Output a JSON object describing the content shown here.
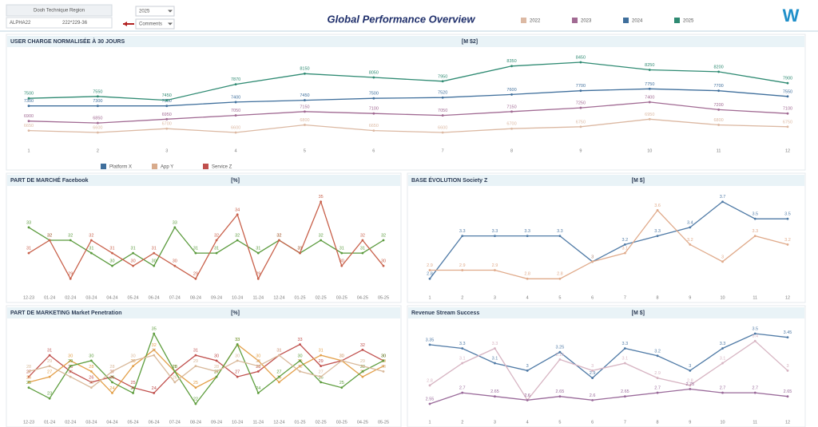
{
  "header": {
    "filter_label": "Dooh Technique Region",
    "filter_code": "ALPHA22",
    "filter_value": "222*229-36",
    "year_select": "2025",
    "comment_select": "Comments",
    "title": "Global Performance Overview",
    "logo": "W"
  },
  "footer_legend": [
    {
      "name": "Platform X",
      "color": "#3f6f9c"
    },
    {
      "name": "App Y",
      "color": "#d8ab8c"
    },
    {
      "name": "Service Z",
      "color": "#c0504d"
    }
  ],
  "chart_data": [
    {
      "type": "line",
      "title": "USER CHARGE NORMALISÉE À 30 JOURS",
      "unit": "[M $2]",
      "categories": [
        "1",
        "2",
        "3",
        "4",
        "5",
        "6",
        "7",
        "8",
        "9",
        "10",
        "11",
        "12"
      ],
      "series": [
        {
          "name": "2022",
          "color": "#dcb9a3",
          "values": [
            6650,
            6600,
            6700,
            6600,
            6800,
            6650,
            6600,
            6700,
            6750,
            6950,
            6800,
            6750
          ]
        },
        {
          "name": "2023",
          "color": "#a16a93",
          "values": [
            6900,
            6850,
            6950,
            7050,
            7150,
            7100,
            7050,
            7150,
            7250,
            7400,
            7200,
            7100
          ]
        },
        {
          "name": "2024",
          "color": "#3f6f9c",
          "values": [
            7300,
            7300,
            7300,
            7400,
            7450,
            7500,
            7520,
            7600,
            7700,
            7750,
            7700,
            7550
          ]
        },
        {
          "name": "2025",
          "color": "#2e8a72",
          "values": [
            7500,
            7550,
            7450,
            7870,
            8150,
            8050,
            7950,
            8350,
            8450,
            8250,
            8200,
            7900
          ]
        }
      ]
    },
    {
      "type": "line",
      "title": "PART DE MARCHÉ Facebook",
      "unit": "[%]",
      "categories": [
        "12-23",
        "01-24",
        "02-24",
        "03-24",
        "04-24",
        "05-24",
        "06-24",
        "07-24",
        "08-24",
        "09-24",
        "10-24",
        "11-24",
        "12-24",
        "01-25",
        "02-25",
        "03-25",
        "04-25",
        "05-25"
      ],
      "series": [
        {
          "color": "#5a9a3c",
          "values": [
            33,
            32,
            32,
            31,
            30,
            31,
            30,
            33,
            31,
            31,
            32,
            31,
            32,
            31,
            32,
            31,
            31,
            32
          ]
        },
        {
          "color": "#c8604a",
          "values": [
            31,
            32,
            29,
            32,
            31,
            30,
            31,
            30,
            29,
            32,
            34,
            29,
            32,
            31,
            35,
            30,
            32,
            30
          ]
        }
      ]
    },
    {
      "type": "line",
      "title": "BASE ÉVOLUTION Society Z",
      "unit": "[M $]",
      "categories": [
        "1",
        "2",
        "3",
        "4",
        "5",
        "6",
        "7",
        "8",
        "9",
        "10",
        "11",
        "12"
      ],
      "series": [
        {
          "color": "#4f7aa6",
          "values": [
            2.8,
            3.3,
            3.3,
            3.3,
            3.3,
            3.0,
            3.2,
            3.3,
            3.4,
            3.7,
            3.5,
            3.5
          ]
        },
        {
          "color": "#e0aa8a",
          "values": [
            2.9,
            2.9,
            2.9,
            2.8,
            2.8,
            3.0,
            3.1,
            3.6,
            3.2,
            3.0,
            3.3,
            3.2
          ]
        }
      ]
    },
    {
      "type": "line",
      "title": "PART DE MARKETING Market Penetration",
      "unit": "[%]",
      "categories": [
        "12-23",
        "01-24",
        "02-24",
        "03-24",
        "04-24",
        "05-24",
        "06-24",
        "07-24",
        "08-24",
        "09-24",
        "10-24",
        "11-24",
        "12-24",
        "01-25",
        "02-25",
        "03-25",
        "04-25",
        "05-25"
      ],
      "series": [
        {
          "color": "#c0504d",
          "values": [
            27,
            31,
            28,
            26,
            27,
            25,
            24,
            28,
            31,
            30,
            27,
            28,
            31,
            33,
            29,
            30,
            32,
            30
          ]
        },
        {
          "color": "#e3a04a",
          "values": [
            26,
            27,
            30,
            28,
            24,
            29,
            32,
            28,
            25,
            27,
            33,
            30,
            26,
            29,
            31,
            30,
            27,
            29
          ]
        },
        {
          "color": "#5f9e3f",
          "values": [
            25,
            23,
            29,
            30,
            26,
            24,
            35,
            28,
            22,
            27,
            33,
            24,
            27,
            30,
            26,
            25,
            28,
            30
          ]
        },
        {
          "color": "#d9b99a",
          "values": [
            28,
            29,
            27,
            25,
            28,
            30,
            31,
            26,
            29,
            28,
            30,
            29,
            31,
            28,
            27,
            30,
            29,
            28
          ]
        }
      ]
    },
    {
      "type": "line",
      "title": "Revenue Stream Success",
      "unit": "[M $]",
      "categories": [
        "1",
        "2",
        "3",
        "4",
        "5",
        "6",
        "7",
        "8",
        "9",
        "10",
        "11",
        "12"
      ],
      "series": [
        {
          "color": "#4f7aa6",
          "values": [
            3.35,
            3.3,
            3.1,
            3.0,
            3.25,
            2.9,
            3.3,
            3.2,
            3.0,
            3.3,
            3.5,
            3.45
          ]
        },
        {
          "color": "#d7b4c2",
          "values": [
            2.8,
            3.1,
            3.3,
            2.6,
            3.15,
            3.0,
            3.1,
            2.9,
            2.8,
            3.1,
            3.4,
            3.0
          ]
        },
        {
          "color": "#9a6a9a",
          "values": [
            2.55,
            2.7,
            2.65,
            2.6,
            2.65,
            2.6,
            2.65,
            2.7,
            2.75,
            2.7,
            2.7,
            2.65
          ]
        }
      ]
    }
  ]
}
